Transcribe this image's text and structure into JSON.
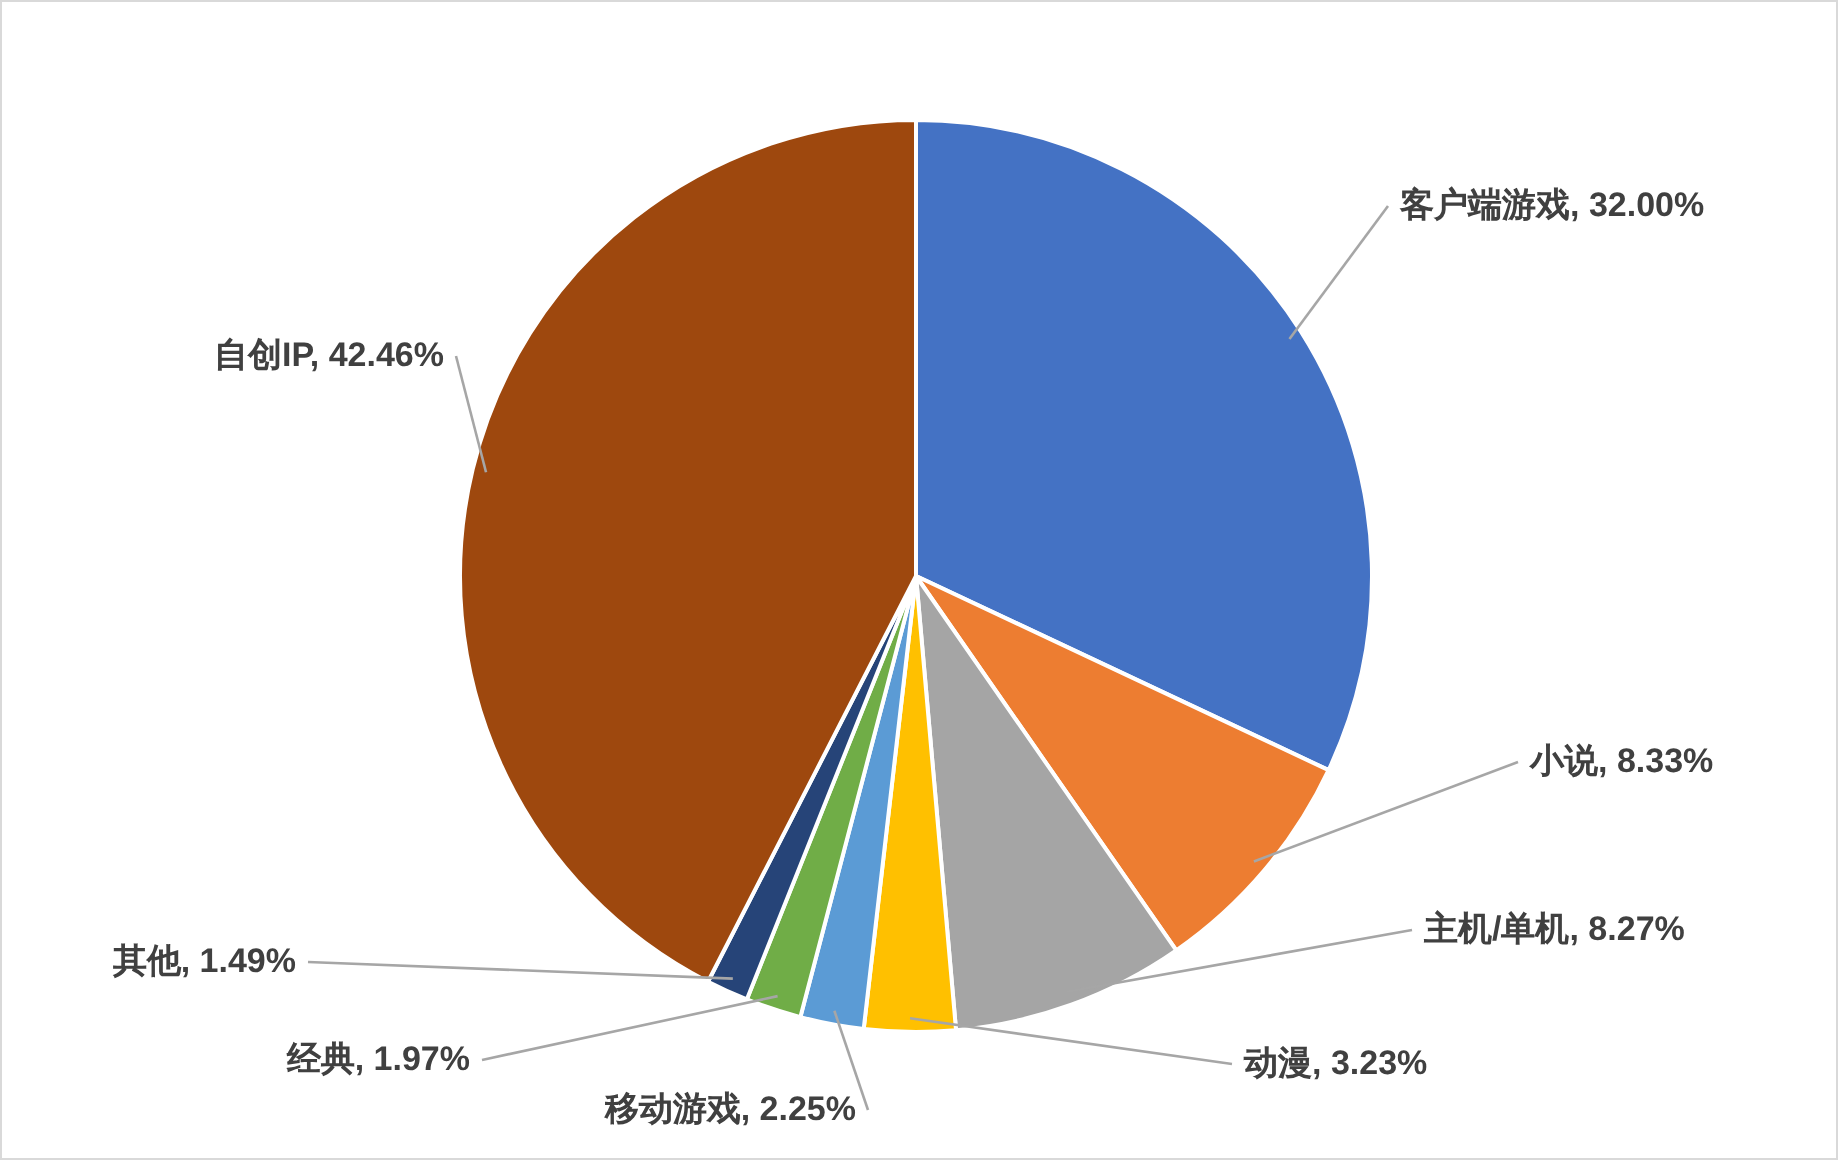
{
  "chart_data": {
    "type": "pie",
    "categories": [
      "客户端游戏",
      "小说",
      "主机/单机",
      "动漫",
      "移动游戏",
      "经典",
      "其他",
      "自创IP"
    ],
    "values": [
      32.0,
      8.33,
      8.27,
      3.23,
      2.25,
      1.97,
      1.49,
      42.46
    ],
    "colors": [
      "#4472c4",
      "#ed7d31",
      "#a5a5a5",
      "#ffc000",
      "#5b9bd5",
      "#70ad47",
      "#264478",
      "#9e480e"
    ],
    "value_labels": [
      ", 32.00%",
      ", 8.33%",
      ", 8.27%",
      ", 3.23%",
      ", 2.25%",
      ", 1.97%",
      ", 1.49%",
      ", 42.46%"
    ]
  }
}
